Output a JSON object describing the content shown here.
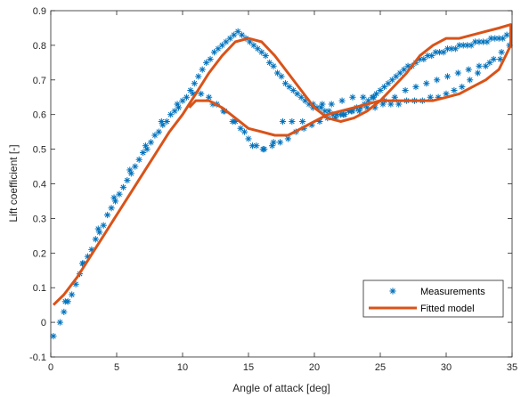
{
  "chart_data": {
    "type": "scatter",
    "xlabel": "Angle of attack [deg]",
    "ylabel": "Lift coefficient [-]",
    "xlim": [
      0,
      35
    ],
    "ylim": [
      -0.1,
      0.9
    ],
    "xticks": [
      "0",
      "5",
      "10",
      "15",
      "20",
      "25",
      "30",
      "35"
    ],
    "yticks": [
      "-0.1",
      "0",
      "0.1",
      "0.2",
      "0.3",
      "0.4",
      "0.5",
      "0.6",
      "0.7",
      "0.8",
      "0.9"
    ],
    "grid": false,
    "legend_position": "bottom-right",
    "series": [
      {
        "name": "Measurements",
        "marker": "asterisk",
        "color": "#0072BD",
        "x": [
          0.2,
          0.7,
          1.0,
          1.3,
          1.6,
          1.9,
          2.2,
          2.5,
          2.8,
          3.1,
          3.4,
          3.7,
          4.0,
          4.3,
          4.6,
          4.9,
          5.2,
          5.5,
          5.8,
          6.1,
          6.4,
          6.7,
          7.0,
          7.3,
          7.6,
          7.9,
          8.2,
          8.5,
          8.8,
          9.1,
          9.4,
          9.7,
          10.0,
          10.3,
          10.6,
          10.9,
          11.2,
          11.5,
          11.8,
          12.1,
          12.4,
          12.7,
          13.0,
          13.3,
          13.6,
          13.9,
          14.2,
          14.5,
          14.8,
          15.1,
          15.4,
          15.7,
          16.0,
          16.3,
          16.6,
          16.9,
          17.2,
          17.5,
          17.8,
          18.1,
          18.4,
          18.7,
          19.0,
          19.3,
          19.6,
          19.9,
          20.2,
          20.5,
          20.8,
          21.1,
          21.4,
          21.7,
          22.0,
          22.3,
          22.6,
          22.9,
          23.2,
          23.5,
          23.8,
          24.1,
          24.4,
          24.7,
          25.0,
          25.3,
          25.6,
          25.9,
          26.2,
          26.5,
          26.8,
          27.1,
          27.4,
          27.7,
          28.0,
          28.3,
          28.6,
          28.9,
          29.2,
          29.5,
          29.8,
          30.1,
          30.4,
          30.7,
          31.0,
          31.3,
          31.6,
          31.9,
          32.2,
          32.5,
          32.8,
          33.1,
          33.4,
          33.7,
          34.0,
          34.3,
          34.6,
          1.1,
          2.4,
          3.6,
          4.8,
          6.0,
          7.2,
          8.4,
          9.6,
          10.8,
          11.4,
          12.0,
          12.6,
          13.2,
          13.8,
          14.4,
          15.0,
          15.6,
          16.2,
          16.8,
          17.4,
          18.0,
          18.6,
          19.2,
          19.8,
          20.4,
          21.0,
          21.6,
          22.2,
          22.8,
          23.4,
          24.0,
          24.6,
          25.2,
          25.8,
          26.4,
          27.0,
          27.6,
          28.2,
          28.8,
          29.4,
          30.0,
          30.6,
          31.2,
          31.8,
          32.4,
          33.0,
          33.6,
          34.2,
          34.8,
          12.3,
          13.1,
          14.0,
          14.7,
          15.3,
          16.1,
          16.9,
          17.6,
          18.3,
          19.1,
          19.9,
          20.6,
          21.3,
          22.1,
          22.9,
          23.7,
          24.5,
          25.3,
          26.1,
          26.9,
          27.7,
          28.5,
          29.3,
          30.1,
          30.9,
          31.7,
          32.5,
          33.3,
          34.1
        ],
        "y": [
          -0.04,
          0.0,
          0.03,
          0.06,
          0.08,
          0.11,
          0.14,
          0.17,
          0.19,
          0.21,
          0.24,
          0.26,
          0.28,
          0.31,
          0.33,
          0.35,
          0.37,
          0.39,
          0.41,
          0.43,
          0.45,
          0.47,
          0.49,
          0.5,
          0.52,
          0.54,
          0.55,
          0.57,
          0.58,
          0.6,
          0.61,
          0.62,
          0.64,
          0.65,
          0.67,
          0.69,
          0.71,
          0.73,
          0.75,
          0.76,
          0.78,
          0.79,
          0.8,
          0.81,
          0.82,
          0.83,
          0.84,
          0.83,
          0.82,
          0.81,
          0.8,
          0.79,
          0.78,
          0.77,
          0.75,
          0.74,
          0.72,
          0.71,
          0.69,
          0.68,
          0.67,
          0.66,
          0.65,
          0.64,
          0.63,
          0.63,
          0.62,
          0.62,
          0.61,
          0.61,
          0.6,
          0.6,
          0.6,
          0.6,
          0.61,
          0.61,
          0.62,
          0.62,
          0.63,
          0.64,
          0.65,
          0.66,
          0.67,
          0.68,
          0.69,
          0.7,
          0.71,
          0.72,
          0.73,
          0.74,
          0.74,
          0.75,
          0.76,
          0.76,
          0.77,
          0.77,
          0.78,
          0.78,
          0.78,
          0.79,
          0.79,
          0.79,
          0.8,
          0.8,
          0.8,
          0.8,
          0.81,
          0.81,
          0.81,
          0.81,
          0.82,
          0.82,
          0.82,
          0.82,
          0.83,
          0.06,
          0.17,
          0.27,
          0.36,
          0.44,
          0.51,
          0.58,
          0.63,
          0.66,
          0.66,
          0.65,
          0.63,
          0.61,
          0.58,
          0.56,
          0.53,
          0.51,
          0.5,
          0.51,
          0.52,
          0.53,
          0.55,
          0.56,
          0.57,
          0.58,
          0.59,
          0.59,
          0.6,
          0.61,
          0.61,
          0.62,
          0.62,
          0.63,
          0.63,
          0.63,
          0.64,
          0.64,
          0.64,
          0.65,
          0.65,
          0.66,
          0.67,
          0.68,
          0.7,
          0.72,
          0.74,
          0.76,
          0.78,
          0.8,
          0.63,
          0.61,
          0.58,
          0.55,
          0.51,
          0.5,
          0.52,
          0.58,
          0.58,
          0.58,
          0.62,
          0.63,
          0.63,
          0.64,
          0.65,
          0.65,
          0.65,
          0.64,
          0.65,
          0.67,
          0.68,
          0.69,
          0.7,
          0.71,
          0.72,
          0.73,
          0.74,
          0.75,
          0.76
        ]
      },
      {
        "name": "Fitted model",
        "style": "line",
        "color": "#D95319",
        "x": [
          0.2,
          1.0,
          2.0,
          3.0,
          4.0,
          5.0,
          6.0,
          7.0,
          8.0,
          9.0,
          10.0,
          11.0,
          12.0,
          13.0,
          14.0,
          15.0,
          16.0,
          17.0,
          18.0,
          19.0,
          20.0,
          21.0,
          22.0,
          23.0,
          24.0,
          25.0,
          26.0,
          27.0,
          28.0,
          29.0,
          30.0,
          31.0,
          32.0,
          33.0,
          34.0,
          34.9,
          34.9,
          34.0,
          33.0,
          32.0,
          31.0,
          30.0,
          29.0,
          28.0,
          27.0,
          26.0,
          25.0,
          24.0,
          23.0,
          22.0,
          21.0,
          20.0,
          19.0,
          18.0,
          17.0,
          16.0,
          15.0,
          14.0,
          13.0,
          12.0,
          11.0,
          10.5
        ],
        "y": [
          0.05,
          0.08,
          0.13,
          0.19,
          0.25,
          0.31,
          0.37,
          0.43,
          0.49,
          0.55,
          0.6,
          0.66,
          0.72,
          0.77,
          0.81,
          0.82,
          0.81,
          0.77,
          0.72,
          0.67,
          0.62,
          0.59,
          0.58,
          0.59,
          0.61,
          0.64,
          0.68,
          0.72,
          0.77,
          0.8,
          0.82,
          0.82,
          0.83,
          0.84,
          0.85,
          0.86,
          0.8,
          0.73,
          0.7,
          0.68,
          0.66,
          0.65,
          0.64,
          0.64,
          0.64,
          0.64,
          0.64,
          0.63,
          0.62,
          0.61,
          0.6,
          0.58,
          0.56,
          0.54,
          0.54,
          0.55,
          0.56,
          0.59,
          0.62,
          0.64,
          0.64,
          0.62
        ]
      }
    ]
  }
}
